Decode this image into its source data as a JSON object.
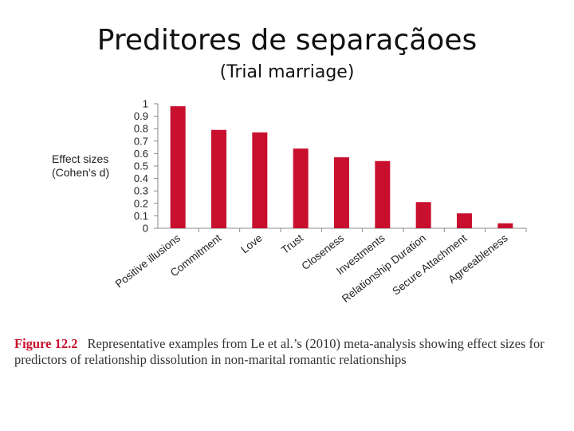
{
  "slide": {
    "title": "Preditores de separaçãoes",
    "subtitle": "(Trial marriage)"
  },
  "colors": {
    "bar": "#c8102e",
    "axis": "#888888"
  },
  "chart_data": {
    "type": "bar",
    "ylabel": [
      "Effect sizes",
      "(Cohen’s d)"
    ],
    "xlabel": "",
    "ylim": [
      0,
      1
    ],
    "yticks": [
      "0",
      "0.1",
      "0.2",
      "0.3",
      "0.4",
      "0.5",
      "0.6",
      "0.7",
      "0.8",
      "0.9",
      "1"
    ],
    "categories": [
      "Positive illusions",
      "Commitment",
      "Love",
      "Trust",
      "Closeness",
      "Investments",
      "Relationship Duration",
      "Secure Attachment",
      "Agreeableness"
    ],
    "values": [
      0.98,
      0.79,
      0.77,
      0.64,
      0.57,
      0.54,
      0.21,
      0.12,
      0.04
    ],
    "grid": false,
    "legend": "none"
  },
  "caption": {
    "figure_number": "Figure 12.2",
    "text": "Representative examples from Le et al.’s (2010) meta-analysis showing effect sizes for predictors of relationship dissolution in non-marital romantic relationships"
  }
}
